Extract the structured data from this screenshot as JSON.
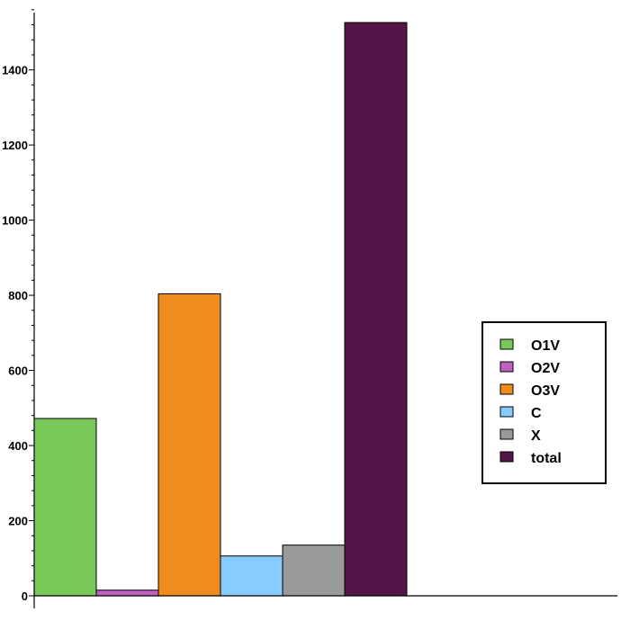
{
  "chart_data": {
    "type": "bar",
    "categories": [
      "O1V",
      "O2V",
      "O3V",
      "C",
      "X",
      "total"
    ],
    "values": [
      472,
      15,
      804,
      106,
      135,
      1526
    ],
    "colors": [
      "#78c85a",
      "#c060c0",
      "#ee8c20",
      "#88ccff",
      "#999999",
      "#561548"
    ],
    "ylim": [
      0,
      1560
    ],
    "yticks": [
      0,
      200,
      400,
      600,
      800,
      1000,
      1200,
      1400
    ],
    "legend": {
      "position": "right",
      "entries": [
        "O1V",
        "O2V",
        "O3V",
        "C",
        "X",
        "total"
      ]
    },
    "grid": false
  }
}
